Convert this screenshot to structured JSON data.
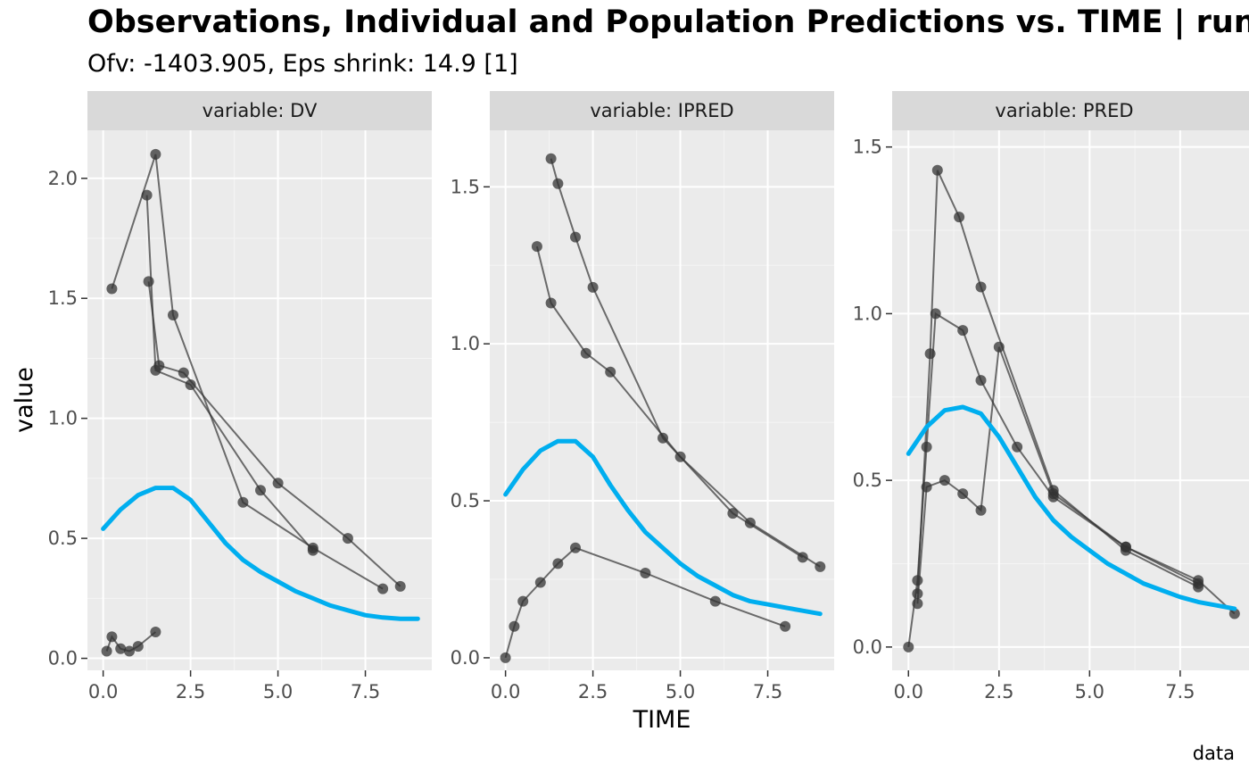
{
  "chart_data": {
    "type": "line",
    "title": "Observations, Individual and Population Predictions vs. TIME | run",
    "subtitle": "Ofv: -1403.905, Eps shrink: 14.9 [1]",
    "xlabel": "TIME",
    "ylabel": "value",
    "caption": "data",
    "xlim": [
      -0.45,
      9.4
    ],
    "x_ticks": [
      0,
      2.5,
      5,
      7.5
    ],
    "x_tick_labels": [
      "0.0",
      "2.5",
      "5.0",
      "7.5"
    ],
    "grid": true,
    "smooth_color": "#00AEEF",
    "point_color": "#333333",
    "panels": [
      {
        "strip_label": "variable: DV",
        "ylim": [
          -0.05,
          2.2
        ],
        "y_ticks": [
          0,
          0.5,
          1.0,
          1.5,
          2.0
        ],
        "y_tick_labels": [
          "0.0",
          "0.5",
          "1.0",
          "1.5",
          "2.0"
        ],
        "smooth": {
          "x": [
            0,
            0.5,
            1.0,
            1.5,
            2.0,
            2.5,
            3.0,
            3.5,
            4.0,
            4.5,
            5.0,
            5.5,
            6.0,
            6.5,
            7.0,
            7.5,
            8.0,
            8.5,
            9.0
          ],
          "y": [
            0.54,
            0.62,
            0.68,
            0.71,
            0.71,
            0.66,
            0.57,
            0.48,
            0.41,
            0.36,
            0.32,
            0.28,
            0.25,
            0.22,
            0.2,
            0.18,
            0.17,
            0.165,
            0.165
          ]
        },
        "highlights": [
          {
            "x": [
              0.25,
              1.5,
              2.0,
              4.0,
              6.0,
              8.0
            ],
            "y": [
              1.54,
              2.1,
              1.43,
              0.65,
              0.46,
              0.29
            ]
          },
          {
            "x": [
              1.25,
              1.5,
              2.5,
              4.5,
              6.0
            ],
            "y": [
              1.93,
              1.2,
              1.14,
              0.7,
              0.45
            ]
          },
          {
            "x": [
              1.3,
              1.6,
              2.3,
              5.0,
              7.0,
              8.5
            ],
            "y": [
              1.57,
              1.22,
              1.19,
              0.73,
              0.5,
              0.3
            ]
          },
          {
            "x": [
              0.1,
              0.25,
              0.5,
              0.75,
              1.0,
              1.5
            ],
            "y": [
              0.03,
              0.09,
              0.04,
              0.03,
              0.05,
              0.11
            ]
          }
        ]
      },
      {
        "strip_label": "variable: IPRED",
        "ylim": [
          -0.04,
          1.68
        ],
        "y_ticks": [
          0,
          0.5,
          1.0,
          1.5
        ],
        "y_tick_labels": [
          "0.0",
          "0.5",
          "1.0",
          "1.5"
        ],
        "smooth": {
          "x": [
            0,
            0.5,
            1.0,
            1.5,
            2.0,
            2.5,
            3.0,
            3.5,
            4.0,
            4.5,
            5.0,
            5.5,
            6.0,
            6.5,
            7.0,
            7.5,
            8.0,
            8.5,
            9.0
          ],
          "y": [
            0.52,
            0.6,
            0.66,
            0.69,
            0.69,
            0.64,
            0.55,
            0.47,
            0.4,
            0.35,
            0.3,
            0.26,
            0.23,
            0.2,
            0.18,
            0.17,
            0.16,
            0.15,
            0.14
          ]
        },
        "highlights": [
          {
            "x": [
              1.3,
              1.5,
              2.0,
              2.5,
              4.5,
              6.5,
              8.5
            ],
            "y": [
              1.59,
              1.51,
              1.34,
              1.18,
              0.7,
              0.46,
              0.32
            ]
          },
          {
            "x": [
              0.9,
              1.3,
              2.3,
              3.0,
              5.0,
              7.0,
              9.0
            ],
            "y": [
              1.31,
              1.13,
              0.97,
              0.91,
              0.64,
              0.43,
              0.29
            ]
          },
          {
            "x": [
              0.0,
              0.25,
              0.5,
              1.0,
              1.5,
              2.0,
              4.0,
              6.0,
              8.0
            ],
            "y": [
              0.0,
              0.1,
              0.18,
              0.24,
              0.3,
              0.35,
              0.27,
              0.18,
              0.1
            ]
          }
        ]
      },
      {
        "strip_label": "variable: PRED",
        "ylim": [
          -0.07,
          1.55
        ],
        "y_ticks": [
          0,
          0.5,
          1.0,
          1.5
        ],
        "y_tick_labels": [
          "0.0",
          "0.5",
          "1.0",
          "1.5"
        ],
        "smooth": {
          "x": [
            0,
            0.5,
            1.0,
            1.5,
            2.0,
            2.5,
            3.0,
            3.5,
            4.0,
            4.5,
            5.0,
            5.5,
            6.0,
            6.5,
            7.0,
            7.5,
            8.0,
            8.5,
            9.0
          ],
          "y": [
            0.58,
            0.66,
            0.71,
            0.72,
            0.7,
            0.63,
            0.54,
            0.45,
            0.38,
            0.33,
            0.29,
            0.25,
            0.22,
            0.19,
            0.17,
            0.15,
            0.135,
            0.125,
            0.115
          ]
        },
        "highlights": [
          {
            "x": [
              0.0,
              0.25,
              0.5,
              0.75,
              1.5,
              2.0,
              3.0,
              4.0,
              6.0,
              8.0,
              9.0
            ],
            "y": [
              0.0,
              0.2,
              0.6,
              1.0,
              0.95,
              0.8,
              0.6,
              0.45,
              0.3,
              0.2,
              0.1
            ]
          },
          {
            "x": [
              0.25,
              0.6,
              0.8,
              1.4,
              2.0,
              4.0,
              6.0,
              8.0
            ],
            "y": [
              0.16,
              0.88,
              1.43,
              1.29,
              1.08,
              0.47,
              0.29,
              0.18
            ]
          },
          {
            "x": [
              0.25,
              0.5,
              1.0,
              1.5,
              2.0,
              2.5,
              4.0,
              6.0,
              8.0
            ],
            "y": [
              0.13,
              0.48,
              0.5,
              0.46,
              0.41,
              0.9,
              0.46,
              0.3,
              0.19
            ]
          }
        ]
      }
    ]
  }
}
